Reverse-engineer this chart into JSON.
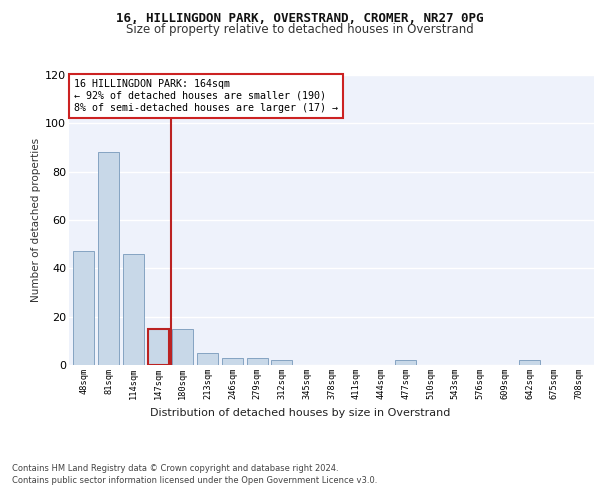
{
  "title_line1": "16, HILLINGDON PARK, OVERSTRAND, CROMER, NR27 0PG",
  "title_line2": "Size of property relative to detached houses in Overstrand",
  "xlabel": "Distribution of detached houses by size in Overstrand",
  "ylabel": "Number of detached properties",
  "bar_labels": [
    "48sqm",
    "81sqm",
    "114sqm",
    "147sqm",
    "180sqm",
    "213sqm",
    "246sqm",
    "279sqm",
    "312sqm",
    "345sqm",
    "378sqm",
    "411sqm",
    "444sqm",
    "477sqm",
    "510sqm",
    "543sqm",
    "576sqm",
    "609sqm",
    "642sqm",
    "675sqm",
    "708sqm"
  ],
  "bar_values": [
    47,
    88,
    46,
    15,
    15,
    5,
    3,
    3,
    2,
    0,
    0,
    0,
    0,
    2,
    0,
    0,
    0,
    0,
    2,
    0,
    0
  ],
  "bar_color": "#c8d8e8",
  "bar_edge_color": "#7799bb",
  "highlight_bar_index": 3,
  "highlight_bar_edge_color": "#bb2222",
  "vline_x": 3.5,
  "vline_color": "#bb2222",
  "annotation_box_text": "16 HILLINGDON PARK: 164sqm\n← 92% of detached houses are smaller (190)\n8% of semi-detached houses are larger (17) →",
  "ylim": [
    0,
    120
  ],
  "yticks": [
    0,
    20,
    40,
    60,
    80,
    100,
    120
  ],
  "background_color": "#eef2fb",
  "grid_color": "#ffffff",
  "fig_facecolor": "#ffffff",
  "footer_line1": "Contains HM Land Registry data © Crown copyright and database right 2024.",
  "footer_line2": "Contains public sector information licensed under the Open Government Licence v3.0."
}
